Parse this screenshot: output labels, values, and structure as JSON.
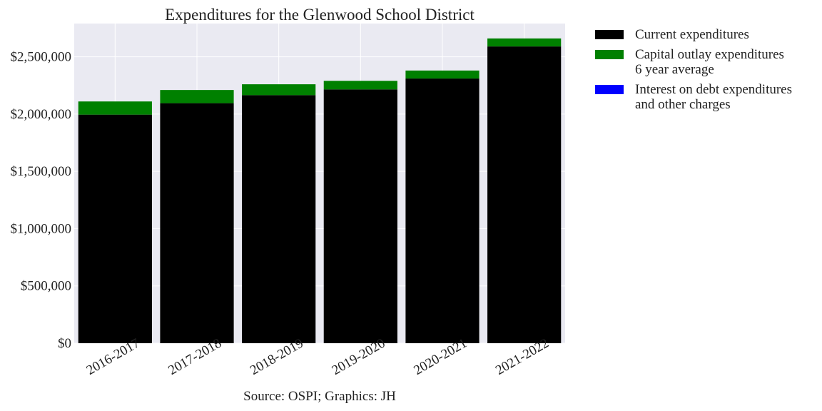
{
  "chart_data": {
    "type": "bar",
    "stacked": true,
    "title": "Expenditures for the Glenwood School District",
    "source_note": "Source: OSPI; Graphics: JH",
    "categories": [
      "2016-2017",
      "2017-2018",
      "2018-2019",
      "2019-2020",
      "2020-2021",
      "2021-2022"
    ],
    "series": [
      {
        "name": "Current expenditures",
        "color": "#000000",
        "values": [
          1995000,
          2095000,
          2165000,
          2215000,
          2310000,
          2590000
        ]
      },
      {
        "name": "Capital outlay expenditures",
        "color": "#008000",
        "values": [
          115000,
          115000,
          95000,
          75000,
          70000,
          70000
        ]
      },
      {
        "name": "Interest on debt expenditures",
        "color": "#0000ff",
        "values": [
          0,
          0,
          0,
          0,
          0,
          0
        ]
      }
    ],
    "legend": {
      "position": "outside-right",
      "entries": [
        {
          "line1": "Current expenditures",
          "line2": "",
          "color": "#000000"
        },
        {
          "line1": "Capital outlay expenditures",
          "line2": "6 year average",
          "color": "#008000"
        },
        {
          "line1": "Interest on debt expenditures",
          "line2": "and other charges",
          "color": "#0000ff"
        }
      ]
    },
    "y_ticks": [
      0,
      500000,
      1000000,
      1500000,
      2000000,
      2500000
    ],
    "y_tick_labels": [
      "$0",
      "$500,000",
      "$1,000,000",
      "$1,500,000",
      "$2,000,000",
      "$2,500,000"
    ],
    "ylim": [
      0,
      2790000
    ],
    "grid": true,
    "background": "#eaeaf2"
  }
}
